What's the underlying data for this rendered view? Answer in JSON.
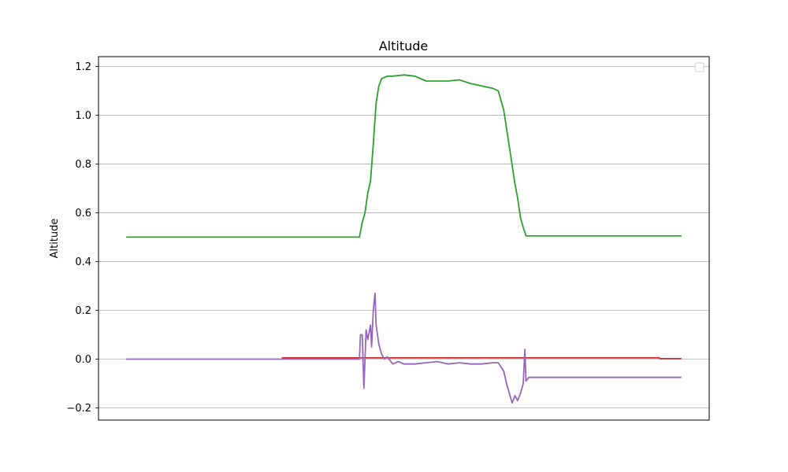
{
  "chart_data": {
    "type": "line",
    "title": "Altitude",
    "xlabel": "",
    "ylabel": "Altitude",
    "ylim": [
      -0.25,
      1.24
    ],
    "xlim": [
      -0.05,
      1.05
    ],
    "yticks": [
      -0.2,
      0.0,
      0.2,
      0.4,
      0.6,
      0.8,
      1.0,
      1.2
    ],
    "ytick_labels": [
      "−0.2",
      "0.0",
      "0.2",
      "0.4",
      "0.6",
      "0.8",
      "1.0",
      "1.2"
    ],
    "x_tick_labels_shown": false,
    "grid": "horizontal",
    "legend": "top-right (empty)",
    "series": [
      {
        "color": "#d62728",
        "x": [
          0.28,
          0.96,
          0.962,
          1.0
        ],
        "y": [
          0.005,
          0.005,
          0.002,
          0.002
        ]
      },
      {
        "color": "#2ca02c",
        "x": [
          0.0,
          0.42,
          0.425,
          0.43,
          0.435,
          0.44,
          0.445,
          0.45,
          0.455,
          0.46,
          0.47,
          0.48,
          0.5,
          0.52,
          0.54,
          0.56,
          0.58,
          0.6,
          0.62,
          0.64,
          0.66,
          0.67,
          0.68,
          0.69,
          0.7,
          0.705,
          0.71,
          0.715,
          0.72,
          0.725,
          1.0
        ],
        "y": [
          0.5,
          0.5,
          0.56,
          0.6,
          0.68,
          0.73,
          0.88,
          1.05,
          1.12,
          1.15,
          1.16,
          1.16,
          1.165,
          1.16,
          1.14,
          1.14,
          1.14,
          1.145,
          1.13,
          1.12,
          1.11,
          1.1,
          1.02,
          0.87,
          0.72,
          0.66,
          0.58,
          0.54,
          0.505,
          0.505,
          0.505
        ]
      },
      {
        "color": "#9467bd",
        "x": [
          0.0,
          0.42,
          0.422,
          0.425,
          0.428,
          0.432,
          0.435,
          0.44,
          0.442,
          0.445,
          0.448,
          0.45,
          0.455,
          0.46,
          0.465,
          0.47,
          0.48,
          0.49,
          0.5,
          0.52,
          0.54,
          0.56,
          0.58,
          0.6,
          0.62,
          0.64,
          0.66,
          0.67,
          0.68,
          0.685,
          0.69,
          0.695,
          0.7,
          0.705,
          0.71,
          0.715,
          0.718,
          0.72,
          0.725,
          0.73,
          1.0
        ],
        "y": [
          0.0,
          0.0,
          0.1,
          0.1,
          -0.12,
          0.12,
          0.08,
          0.14,
          0.05,
          0.2,
          0.27,
          0.14,
          0.06,
          0.02,
          0.0,
          0.01,
          -0.02,
          -0.01,
          -0.02,
          -0.02,
          -0.015,
          -0.01,
          -0.02,
          -0.015,
          -0.02,
          -0.02,
          -0.015,
          -0.015,
          -0.05,
          -0.1,
          -0.14,
          -0.18,
          -0.15,
          -0.17,
          -0.14,
          -0.1,
          0.04,
          -0.09,
          -0.075,
          -0.075,
          -0.075
        ]
      }
    ]
  }
}
